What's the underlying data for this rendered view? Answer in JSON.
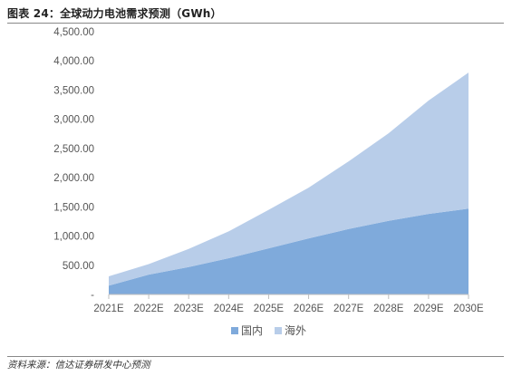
{
  "figure": {
    "title": "图表 24：全球动力电池需求预测（GWh）",
    "source": "资料来源：信达证券研发中心预测"
  },
  "chart_data": {
    "type": "area",
    "stacked": true,
    "categories": [
      "2021E",
      "2022E",
      "2023E",
      "2024E",
      "2025E",
      "2026E",
      "2027E",
      "2028E",
      "2029E",
      "2030E"
    ],
    "series": [
      {
        "name": "国内",
        "color": "#7faadb",
        "values": [
          150,
          340,
          470,
          620,
          790,
          960,
          1120,
          1260,
          1380,
          1470
        ]
      },
      {
        "name": "海外",
        "color": "#b8cde9",
        "values": [
          160,
          180,
          310,
          460,
          660,
          870,
          1160,
          1500,
          1940,
          2330
        ]
      }
    ],
    "ylim": [
      0,
      4500
    ],
    "yticks": [
      0,
      500,
      1000,
      1500,
      2000,
      2500,
      3000,
      3500,
      4000,
      4500
    ],
    "ytick_labels": [
      "-",
      "500.00",
      "1,000.00",
      "1,500.00",
      "2,000.00",
      "2,500.00",
      "3,000.00",
      "3,500.00",
      "4,000.00",
      "4,500.00"
    ],
    "legend_position": "bottom",
    "grid": false
  }
}
